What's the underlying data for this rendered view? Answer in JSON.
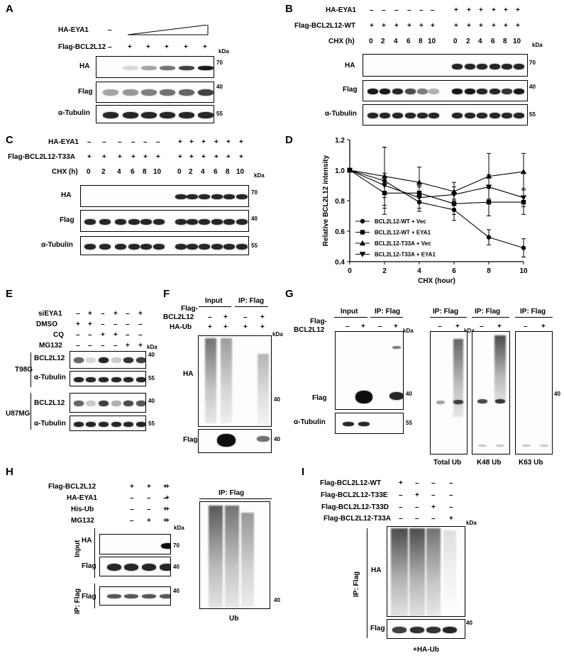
{
  "panels": {
    "A": {
      "letter": "A",
      "row_labels": [
        "HA-EYA1",
        "Flag-BCL2L12"
      ],
      "eya1_marks": [
        "–"
      ],
      "bcl_marks": [
        "–",
        "+",
        "+",
        "+",
        "+",
        "+"
      ],
      "blots": [
        "HA",
        "Flag",
        "α-Tubulin"
      ],
      "kda": "kDa",
      "markers": [
        "70",
        "40",
        "55"
      ]
    },
    "B": {
      "letter": "B",
      "row_labels": [
        "HA-EYA1",
        "Flag-BCL2L12-WT",
        "CHX (h)"
      ],
      "eya1_marks": [
        "–",
        "–",
        "–",
        "–",
        "–",
        "–",
        "+",
        "+",
        "+",
        "+",
        "+",
        "+"
      ],
      "flag_marks": [
        "+",
        "+",
        "+",
        "+",
        "+",
        "+",
        "+",
        "+",
        "+",
        "+",
        "+",
        "+"
      ],
      "chx": [
        "0",
        "2",
        "4",
        "6",
        "8",
        "10",
        "0",
        "2",
        "4",
        "6",
        "8",
        "10"
      ],
      "blots": [
        "HA",
        "Flag",
        "α-Tubulin"
      ],
      "kda": "kDa",
      "markers": [
        "70",
        "40",
        "55"
      ]
    },
    "C": {
      "letter": "C",
      "row_labels": [
        "HA-EYA1",
        "Flag-BCL2L12-T33A",
        "CHX (h)"
      ],
      "eya1_marks": [
        "–",
        "–",
        "–",
        "–",
        "–",
        "–",
        "+",
        "+",
        "+",
        "+",
        "+",
        "+"
      ],
      "flag_marks": [
        "+",
        "+",
        "+",
        "+",
        "+",
        "+",
        "+",
        "+",
        "+",
        "+",
        "+",
        "+"
      ],
      "chx": [
        "0",
        "2",
        "4",
        "6",
        "8",
        "10",
        "0",
        "2",
        "4",
        "6",
        "8",
        "10"
      ],
      "blots": [
        "HA",
        "Flag",
        "α-Tubulin"
      ],
      "kda": "kDa",
      "markers": [
        "70",
        "40",
        "55"
      ]
    },
    "D": {
      "letter": "D"
    },
    "E": {
      "letter": "E",
      "row_labels": [
        "siEYA1",
        "DMSO",
        "CQ",
        "MG132"
      ],
      "marks": [
        [
          "–",
          "+",
          "–",
          "+",
          "–",
          "+"
        ],
        [
          "+",
          "+",
          "–",
          "–",
          "–",
          "–"
        ],
        [
          "–",
          "–",
          "+",
          "+",
          "–",
          "–"
        ],
        [
          "–",
          "–",
          "–",
          "–",
          "+",
          "+"
        ]
      ],
      "cell_lines": [
        "T98G",
        "U87MG"
      ],
      "blots": [
        "BCL2L12",
        "α-Tubulin",
        "BCL2L12",
        "α-Tubulin"
      ],
      "kda": "kDa",
      "markers": [
        "40",
        "55",
        "40",
        "55"
      ]
    },
    "F": {
      "letter": "F",
      "groups": [
        "Input",
        "IP: Flag"
      ],
      "row_labels": [
        "Flag-",
        "BCL2L12",
        "HA-Ub"
      ],
      "flag_marks": [
        "–",
        "+",
        "–",
        "+"
      ],
      "ub_marks": [
        "+",
        "+",
        "+",
        "+"
      ],
      "blots": [
        "HA",
        "Flag"
      ],
      "kda": "kDa",
      "markers": [
        "40",
        "40"
      ]
    },
    "G": {
      "letter": "G",
      "groups": [
        "Input",
        "IP: Flag",
        "IP: Flag",
        "IP: Flag",
        "IP: Flag"
      ],
      "row_labels": [
        "Flag-",
        "BCL2L12"
      ],
      "marks": [
        "–",
        "+",
        "–",
        "+"
      ],
      "ub_marks": [
        "–",
        "+",
        "–",
        "+",
        "–",
        "+"
      ],
      "blots": [
        "Flag",
        "α-Tubulin"
      ],
      "captions": [
        "Total Ub",
        "K48 Ub",
        "K63 Ub"
      ],
      "kda": "kDa",
      "markers": [
        "40",
        "55",
        "40"
      ]
    },
    "H": {
      "letter": "H",
      "row_labels": [
        "Flag-BCL2L12",
        "HA-EYA1",
        "His-Ub",
        "MG132"
      ],
      "marks": [
        [
          "+",
          "+",
          "+",
          "+"
        ],
        [
          "–",
          "–",
          "–",
          "+"
        ],
        [
          "–",
          "–",
          "+",
          "+"
        ],
        [
          "–",
          "+",
          "+",
          "+"
        ]
      ],
      "side_labels": [
        "Input",
        "IP: Flag"
      ],
      "blots": [
        "HA",
        "Flag",
        "Flag"
      ],
      "ip_header": "IP: Flag",
      "caption": "Ub",
      "kda": "kDa",
      "markers": [
        "70",
        "40",
        "40",
        "40"
      ]
    },
    "I": {
      "letter": "I",
      "row_labels": [
        "Flag-BCL2L12-WT",
        "Flag-BCL2L12-T33E",
        "Flag-BCL2L12-T33D",
        "Flag-BCL2L12-T33A"
      ],
      "marks": [
        [
          "+",
          "–",
          "–",
          "–"
        ],
        [
          "–",
          "+",
          "–",
          "–"
        ],
        [
          "–",
          "–",
          "+",
          "–"
        ],
        [
          "–",
          "–",
          "–",
          "+"
        ]
      ],
      "side_label": "IP: Flag",
      "blots": [
        "HA",
        "Flag"
      ],
      "caption": "+HA-Ub",
      "kda": "kDa",
      "markers": [
        "40"
      ]
    }
  },
  "chart_data": {
    "type": "line",
    "title": "",
    "xlabel": "CHX (hour)",
    "ylabel": "Relative BCL2L12 intensity",
    "xlim": [
      0,
      10
    ],
    "ylim": [
      0.4,
      1.2
    ],
    "xticks": [
      "0",
      "2",
      "4",
      "6",
      "8",
      "10"
    ],
    "yticks": [
      "0.4",
      "0.6",
      "0.8",
      "1.0",
      "1.2"
    ],
    "legend_position": "bottom-left",
    "x": [
      0,
      2,
      4,
      6,
      8,
      10
    ],
    "series": [
      {
        "name": "BCL2L12-WT + Vec",
        "marker": "circle",
        "values": [
          1.0,
          0.93,
          0.79,
          0.74,
          0.56,
          0.49
        ],
        "errors": [
          0.0,
          0.22,
          0.06,
          0.07,
          0.05,
          0.06
        ]
      },
      {
        "name": "BCL2L12-WT + EYA1",
        "marker": "square",
        "values": [
          1.0,
          0.85,
          0.85,
          0.78,
          0.79,
          0.79
        ],
        "errors": [
          0.0,
          0.1,
          0.05,
          0.07,
          0.09,
          0.08
        ]
      },
      {
        "name": "BCL2L12-T33A + Vec",
        "marker": "triangle-up",
        "values": [
          1.0,
          0.96,
          0.92,
          0.86,
          0.96,
          0.99
        ],
        "errors": [
          0.0,
          0.19,
          0.1,
          0.06,
          0.15,
          0.12
        ]
      },
      {
        "name": "BCL2L12-T33A + EYA1",
        "marker": "triangle-down",
        "values": [
          1.0,
          0.9,
          0.82,
          0.84,
          0.89,
          0.82
        ],
        "errors": [
          0.0,
          0.08,
          0.07,
          0.05,
          0.08,
          0.06
        ]
      }
    ]
  }
}
